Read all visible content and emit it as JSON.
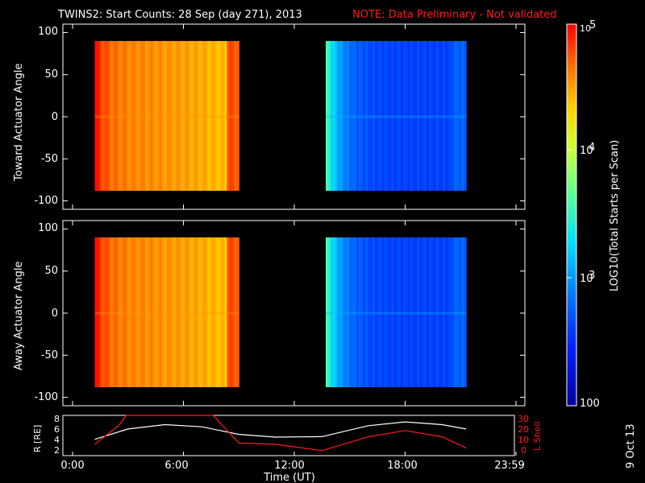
{
  "title": "TWINS2: Start Counts: 28 Sep (day 271), 2013",
  "note": "NOTE: Data Preliminary - Not validated",
  "date_stamp": "9 Oct 13",
  "colors": {
    "note": "#ff1a1a",
    "ephemeris_r": "#ffffff",
    "ephemeris_lshell": "#ff1a1a",
    "background": "#000000"
  },
  "chart_data": [
    {
      "type": "heatmap",
      "ylabel": "Toward Actuator Angle",
      "yticks": [
        "100",
        "50",
        "0",
        "-50",
        "-100"
      ],
      "ylim": [
        -110,
        110
      ],
      "xlim": [
        0,
        24
      ],
      "y_coverage": [
        -88,
        90
      ],
      "blocks": [
        {
          "t_start": 1.2,
          "t_end": 9.0,
          "dominant_log10_counts": 4.6
        },
        {
          "t_start": 13.7,
          "t_end": 21.3,
          "dominant_log10_counts": 2.6
        }
      ]
    },
    {
      "type": "heatmap",
      "ylabel": "Away Actuator Angle",
      "yticks": [
        "100",
        "50",
        "0",
        "-50",
        "-100"
      ],
      "ylim": [
        -110,
        110
      ],
      "xlim": [
        0,
        24
      ],
      "y_coverage": [
        -88,
        90
      ],
      "blocks": [
        {
          "t_start": 1.2,
          "t_end": 9.0,
          "dominant_log10_counts": 4.6
        },
        {
          "t_start": 13.7,
          "t_end": 21.3,
          "dominant_log10_counts": 2.6
        }
      ]
    },
    {
      "type": "line",
      "ylabel": "R [RE]",
      "y2label": "L Shell",
      "yticks": [
        "8",
        "6",
        "4",
        "2"
      ],
      "y2ticks": [
        "30",
        "20",
        "10",
        "0"
      ],
      "ylim": [
        1.3,
        8.7
      ],
      "y2lim": [
        0,
        32
      ],
      "xlim": [
        0,
        24
      ],
      "xlabel": "Time (UT)",
      "xticks": [
        "0:00",
        "6:00",
        "12:00",
        "18:00",
        "23:59"
      ],
      "series": [
        {
          "name": "R [RE]",
          "x": [
            1.2,
            3,
            5,
            7,
            9,
            11,
            13.5,
            16,
            18,
            20,
            21.3
          ],
          "values": [
            4.3,
            6.2,
            7.0,
            6.6,
            5.2,
            4.7,
            4.8,
            6.8,
            7.5,
            7.0,
            6.2
          ]
        },
        {
          "name": "L Shell",
          "x": [
            1.2,
            2.5,
            2.9,
            7.6,
            9,
            11,
            13.5,
            16,
            18,
            20,
            21.3
          ],
          "values": [
            9,
            24,
            32,
            32,
            10,
            9,
            4,
            15,
            20,
            15,
            6
          ]
        }
      ]
    },
    {
      "type": "heatmap",
      "role": "colorbar",
      "label": "LOG10(Total Starts per Scan)",
      "ticks": [
        "10",
        "5",
        "10",
        "4",
        "10",
        "3",
        "100"
      ],
      "range_log10": [
        2,
        5
      ]
    }
  ]
}
